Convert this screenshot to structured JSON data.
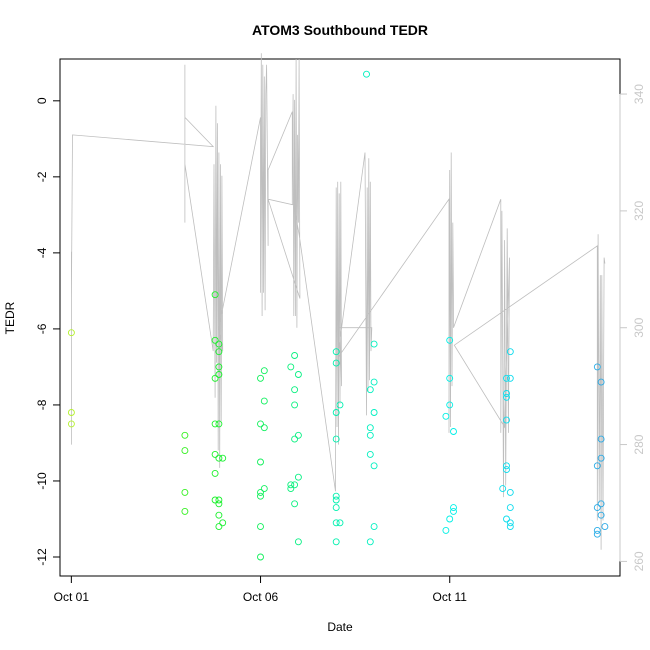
{
  "chart_data": {
    "type": "scatter",
    "title": "ATOM3 Southbound TEDR",
    "xlabel": "Date",
    "ylabel": "TEDR",
    "x_ticks": [
      {
        "value": 0,
        "label": "Oct 01"
      },
      {
        "value": 5,
        "label": "Oct 06"
      },
      {
        "value": 10,
        "label": "Oct 11"
      }
    ],
    "xlim": [
      -0.3,
      14.5
    ],
    "y_ticks": [
      0,
      -2,
      -4,
      -6,
      -8,
      -10,
      -12
    ],
    "ylim": [
      -12.5,
      1.1
    ],
    "y2_ticks": [
      260,
      280,
      300,
      320,
      340
    ],
    "y2lim": [
      257.5,
      346
    ],
    "grid": false,
    "colors": {
      "line": "#bebebe",
      "right_axis": "#c8c8c8",
      "point_gradient": [
        "#b5f22e",
        "#1ef01e",
        "#00f0b0",
        "#00f0f0",
        "#2aa8e6"
      ]
    },
    "points": [
      [
        0.0,
        -6.1
      ],
      [
        0.0,
        -8.2
      ],
      [
        0.0,
        -8.5
      ],
      [
        3.0,
        -8.8
      ],
      [
        3.0,
        -9.2
      ],
      [
        3.0,
        -10.3
      ],
      [
        3.0,
        -10.8
      ],
      [
        3.8,
        -5.1
      ],
      [
        3.8,
        -6.3
      ],
      [
        3.9,
        -6.4
      ],
      [
        3.9,
        -6.6
      ],
      [
        3.8,
        -7.3
      ],
      [
        3.9,
        -7.0
      ],
      [
        3.9,
        -7.2
      ],
      [
        3.8,
        -8.5
      ],
      [
        3.9,
        -8.5
      ],
      [
        3.8,
        -9.3
      ],
      [
        3.9,
        -9.4
      ],
      [
        4.0,
        -9.4
      ],
      [
        3.8,
        -9.8
      ],
      [
        3.8,
        -10.5
      ],
      [
        3.9,
        -10.5
      ],
      [
        3.9,
        -10.6
      ],
      [
        3.9,
        -10.9
      ],
      [
        4.0,
        -11.1
      ],
      [
        3.9,
        -11.2
      ],
      [
        5.0,
        -7.3
      ],
      [
        5.1,
        -7.1
      ],
      [
        5.1,
        -7.9
      ],
      [
        5.0,
        -8.5
      ],
      [
        5.1,
        -8.6
      ],
      [
        5.0,
        -9.5
      ],
      [
        5.1,
        -10.2
      ],
      [
        5.0,
        -10.3
      ],
      [
        5.0,
        -10.4
      ],
      [
        5.0,
        -11.2
      ],
      [
        5.0,
        -12.0
      ],
      [
        5.8,
        -7.0
      ],
      [
        5.9,
        -6.7
      ],
      [
        6.0,
        -7.2
      ],
      [
        5.9,
        -7.6
      ],
      [
        5.9,
        -8.0
      ],
      [
        6.0,
        -8.8
      ],
      [
        5.9,
        -8.9
      ],
      [
        6.0,
        -9.9
      ],
      [
        5.8,
        -10.1
      ],
      [
        5.9,
        -10.1
      ],
      [
        5.8,
        -10.2
      ],
      [
        5.9,
        -10.6
      ],
      [
        6.0,
        -11.6
      ],
      [
        7.0,
        -6.6
      ],
      [
        7.0,
        -6.9
      ],
      [
        7.0,
        -8.2
      ],
      [
        7.1,
        -8.0
      ],
      [
        7.0,
        -8.9
      ],
      [
        7.0,
        -10.4
      ],
      [
        7.0,
        -10.5
      ],
      [
        7.0,
        -10.7
      ],
      [
        7.0,
        -11.1
      ],
      [
        7.1,
        -11.1
      ],
      [
        7.0,
        -11.6
      ],
      [
        7.8,
        0.7
      ],
      [
        8.0,
        -6.4
      ],
      [
        8.0,
        -7.4
      ],
      [
        7.9,
        -7.6
      ],
      [
        8.0,
        -8.2
      ],
      [
        7.9,
        -8.6
      ],
      [
        7.9,
        -8.8
      ],
      [
        7.9,
        -9.3
      ],
      [
        8.0,
        -9.6
      ],
      [
        8.0,
        -11.2
      ],
      [
        7.9,
        -11.6
      ],
      [
        10.0,
        -6.3
      ],
      [
        10.0,
        -7.3
      ],
      [
        10.0,
        -8.0
      ],
      [
        9.9,
        -8.3
      ],
      [
        10.1,
        -8.7
      ],
      [
        10.1,
        -10.7
      ],
      [
        10.1,
        -10.8
      ],
      [
        10.0,
        -11.0
      ],
      [
        9.9,
        -11.3
      ],
      [
        11.6,
        -6.6
      ],
      [
        11.5,
        -7.3
      ],
      [
        11.6,
        -7.3
      ],
      [
        11.5,
        -7.7
      ],
      [
        11.5,
        -7.8
      ],
      [
        11.5,
        -8.4
      ],
      [
        11.5,
        -9.6
      ],
      [
        11.5,
        -9.7
      ],
      [
        11.4,
        -10.2
      ],
      [
        11.6,
        -10.3
      ],
      [
        11.6,
        -10.7
      ],
      [
        11.5,
        -11.0
      ],
      [
        11.6,
        -11.1
      ],
      [
        11.6,
        -11.2
      ],
      [
        13.9,
        -7.0
      ],
      [
        14.0,
        -7.4
      ],
      [
        14.0,
        -8.9
      ],
      [
        14.0,
        -9.4
      ],
      [
        13.9,
        -9.6
      ],
      [
        13.9,
        -10.7
      ],
      [
        14.0,
        -10.6
      ],
      [
        14.0,
        -10.9
      ],
      [
        14.1,
        -11.2
      ],
      [
        13.9,
        -11.3
      ],
      [
        13.9,
        -11.4
      ]
    ],
    "line_series": [
      [
        0.0,
        280
      ],
      [
        0.0,
        313
      ],
      [
        0.0,
        305
      ],
      [
        0.03,
        333
      ],
      [
        3.75,
        331
      ],
      [
        3.0,
        336
      ],
      [
        3.0,
        325
      ],
      [
        3.0,
        333
      ],
      [
        3.0,
        329
      ],
      [
        3.0,
        345
      ],
      [
        3.0,
        325
      ],
      [
        3.0,
        322
      ],
      [
        3.0,
        327
      ],
      [
        3.0,
        318
      ],
      [
        3.0,
        328
      ],
      [
        3.75,
        296
      ],
      [
        3.77,
        328
      ],
      [
        3.8,
        288
      ],
      [
        3.82,
        338
      ],
      [
        3.84,
        294
      ],
      [
        3.86,
        335
      ],
      [
        3.88,
        279
      ],
      [
        3.9,
        330
      ],
      [
        3.92,
        276
      ],
      [
        3.94,
        328
      ],
      [
        3.96,
        284
      ],
      [
        3.98,
        326
      ],
      [
        4.0,
        296
      ],
      [
        3.9,
        300
      ],
      [
        5.0,
        336
      ],
      [
        5.0,
        306
      ],
      [
        5.02,
        347
      ],
      [
        5.04,
        302
      ],
      [
        5.06,
        345
      ],
      [
        5.08,
        306
      ],
      [
        5.1,
        343
      ],
      [
        5.12,
        303
      ],
      [
        5.14,
        340
      ],
      [
        5.16,
        345
      ],
      [
        5.2,
        314
      ],
      [
        5.2,
        327
      ],
      [
        5.84,
        337
      ],
      [
        5.84,
        321
      ],
      [
        5.86,
        340
      ],
      [
        5.88,
        302
      ],
      [
        5.9,
        339
      ],
      [
        5.92,
        302
      ],
      [
        5.94,
        346
      ],
      [
        5.96,
        300
      ],
      [
        5.98,
        333
      ],
      [
        6.0,
        318
      ],
      [
        6.02,
        346
      ],
      [
        6.04,
        305
      ],
      [
        5.2,
        322
      ],
      [
        5.88,
        321
      ],
      [
        6.02,
        316
      ],
      [
        6.98,
        272
      ],
      [
        7.0,
        324
      ],
      [
        7.02,
        283
      ],
      [
        7.04,
        325
      ],
      [
        7.06,
        280
      ],
      [
        7.08,
        323
      ],
      [
        7.1,
        287
      ],
      [
        7.12,
        325
      ],
      [
        7.14,
        290
      ],
      [
        7.08,
        306
      ],
      [
        7.06,
        296
      ],
      [
        7.76,
        330
      ],
      [
        7.8,
        285
      ],
      [
        7.82,
        324
      ],
      [
        7.84,
        289
      ],
      [
        7.86,
        329
      ],
      [
        7.88,
        291
      ],
      [
        7.9,
        325
      ],
      [
        7.92,
        296
      ],
      [
        7.94,
        300
      ],
      [
        7.06,
        300
      ],
      [
        7.06,
        295
      ],
      [
        9.98,
        322
      ],
      [
        9.98,
        282
      ],
      [
        10.0,
        327
      ],
      [
        10.02,
        283
      ],
      [
        10.04,
        330
      ],
      [
        10.06,
        290
      ],
      [
        10.08,
        318
      ],
      [
        10.1,
        303
      ],
      [
        10.1,
        300
      ],
      [
        11.35,
        322
      ],
      [
        11.35,
        282
      ],
      [
        11.38,
        320
      ],
      [
        11.42,
        271
      ],
      [
        11.45,
        315
      ],
      [
        11.48,
        273
      ],
      [
        11.52,
        317
      ],
      [
        11.55,
        282
      ],
      [
        11.58,
        312
      ],
      [
        11.45,
        283
      ],
      [
        10.12,
        297
      ],
      [
        13.9,
        314
      ],
      [
        13.9,
        267
      ],
      [
        13.92,
        316
      ],
      [
        13.95,
        270
      ],
      [
        13.98,
        309
      ],
      [
        14.0,
        262
      ],
      [
        14.02,
        309
      ],
      [
        14.05,
        267
      ],
      [
        14.08,
        312
      ],
      [
        14.1,
        311
      ]
    ]
  }
}
